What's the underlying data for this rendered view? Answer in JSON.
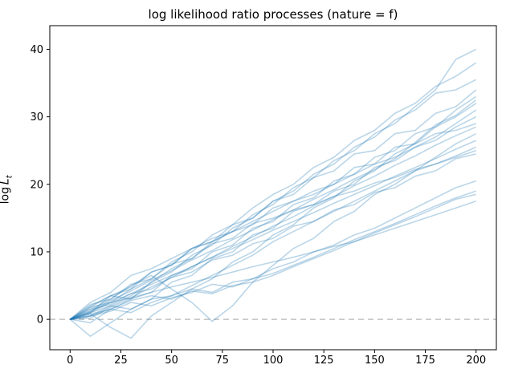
{
  "chart_data": {
    "type": "line",
    "title": "log likelihood ratio processes (nature = f)",
    "xlabel": "",
    "ylabel": {
      "prefix": "log",
      "var": "L",
      "sub": "t"
    },
    "xlim": [
      -10,
      210
    ],
    "ylim": [
      -4.5,
      43.5
    ],
    "xticks": [
      0,
      25,
      50,
      75,
      100,
      125,
      150,
      175,
      200
    ],
    "yticks": [
      0,
      10,
      20,
      30,
      40
    ],
    "grid": false,
    "legend": "none",
    "zero_line": {
      "y": 0,
      "color": "#b5b5b5",
      "dash": "7 5",
      "width": 1.3
    },
    "style": {
      "line_color": "#1f77b4",
      "line_alpha": 0.3,
      "line_width": 1.6,
      "spine_color": "#000000",
      "tick_color": "#000000",
      "tick_label_size": 13
    },
    "x": [
      0,
      10,
      20,
      30,
      40,
      50,
      60,
      70,
      80,
      90,
      100,
      110,
      120,
      130,
      140,
      150,
      160,
      170,
      180,
      190,
      200
    ],
    "series": [
      {
        "values": [
          0,
          2.0,
          3.5,
          3.0,
          5.5,
          7.5,
          9.0,
          11.5,
          13.0,
          15.5,
          17.0,
          19.5,
          21.0,
          23.5,
          25.0,
          27.5,
          29.0,
          31.5,
          34.0,
          38.5,
          40.0
        ]
      },
      {
        "values": [
          0,
          1.0,
          2.5,
          4.5,
          6.0,
          8.5,
          10.0,
          12.5,
          14.0,
          16.5,
          18.5,
          20.0,
          22.5,
          24.0,
          26.5,
          28.0,
          30.5,
          32.0,
          34.5,
          36.0,
          38.0
        ]
      },
      {
        "values": [
          0,
          0.5,
          2.0,
          3.5,
          5.5,
          7.0,
          9.5,
          11.0,
          13.5,
          15.0,
          17.5,
          19.0,
          21.5,
          23.0,
          25.5,
          27.0,
          29.5,
          31.0,
          33.5,
          34.0,
          35.5
        ]
      },
      {
        "values": [
          0,
          1.8,
          3.5,
          4.8,
          7.0,
          8.0,
          10.5,
          11.5,
          14.0,
          15.0,
          17.5,
          18.5,
          21.0,
          22.0,
          24.5,
          25.0,
          27.5,
          28.0,
          30.5,
          31.5,
          34.0
        ]
      },
      {
        "values": [
          0,
          -0.5,
          1.5,
          3.0,
          4.0,
          6.5,
          7.5,
          10.0,
          11.0,
          13.5,
          14.5,
          17.0,
          18.0,
          20.5,
          21.5,
          24.0,
          25.0,
          27.5,
          28.5,
          31.0,
          33.0
        ]
      },
      {
        "values": [
          0,
          1.2,
          2.8,
          4.2,
          5.8,
          7.2,
          8.8,
          10.2,
          11.8,
          13.2,
          14.8,
          16.2,
          17.8,
          19.2,
          20.8,
          22.2,
          23.8,
          26.2,
          28.8,
          30.2,
          32.5
        ]
      },
      {
        "values": [
          0,
          0.8,
          -1.2,
          -2.8,
          0.5,
          2.5,
          4.5,
          6.0,
          8.5,
          10.0,
          12.5,
          14.0,
          16.5,
          18.0,
          20.5,
          22.0,
          24.5,
          26.0,
          28.5,
          30.0,
          32.0
        ]
      },
      {
        "values": [
          0,
          2.5,
          4.0,
          6.5,
          7.5,
          9.0,
          10.5,
          12.0,
          13.0,
          14.5,
          16.0,
          17.5,
          18.5,
          20.0,
          21.5,
          23.0,
          24.0,
          25.5,
          27.0,
          29.0,
          31.0
        ]
      },
      {
        "values": [
          0,
          -2.5,
          -0.5,
          1.5,
          3.0,
          5.5,
          6.5,
          9.0,
          10.0,
          12.5,
          13.5,
          16.0,
          17.0,
          19.0,
          20.0,
          22.5,
          23.5,
          25.5,
          26.5,
          28.5,
          30.0
        ]
      },
      {
        "values": [
          0,
          1.0,
          3.5,
          4.5,
          7.0,
          8.0,
          10.5,
          11.5,
          13.0,
          14.0,
          16.5,
          17.5,
          19.0,
          20.0,
          22.5,
          23.0,
          25.5,
          26.0,
          27.5,
          28.0,
          29.0
        ]
      },
      {
        "values": [
          0,
          0.2,
          1.8,
          3.2,
          4.8,
          6.2,
          7.8,
          9.2,
          10.8,
          12.2,
          13.8,
          15.2,
          16.8,
          18.2,
          19.8,
          21.2,
          22.8,
          24.2,
          25.8,
          27.2,
          28.5
        ]
      },
      {
        "values": [
          0,
          1.5,
          3.0,
          5.0,
          6.5,
          4.5,
          2.5,
          -0.3,
          2.0,
          5.5,
          8.0,
          10.5,
          12.0,
          14.5,
          16.0,
          18.5,
          20.0,
          22.0,
          24.0,
          26.0,
          27.5
        ]
      },
      {
        "values": [
          0,
          1.2,
          2.5,
          3.8,
          5.2,
          6.5,
          7.8,
          9.2,
          10.5,
          11.8,
          13.2,
          14.5,
          15.8,
          17.2,
          18.5,
          19.8,
          21.2,
          22.5,
          23.8,
          25.2,
          26.5
        ]
      },
      {
        "values": [
          0,
          2.2,
          3.0,
          5.2,
          6.0,
          8.2,
          9.0,
          11.2,
          12.0,
          14.2,
          15.0,
          16.2,
          17.0,
          18.2,
          19.0,
          20.2,
          21.0,
          22.2,
          23.0,
          24.2,
          25.5
        ]
      },
      {
        "values": [
          0,
          0.5,
          1.5,
          1.0,
          2.5,
          3.5,
          5.0,
          6.5,
          8.0,
          9.5,
          11.5,
          13.0,
          14.5,
          16.0,
          17.5,
          19.0,
          20.5,
          22.0,
          23.0,
          24.0,
          25.0
        ]
      },
      {
        "values": [
          0,
          1.5,
          2.2,
          3.8,
          4.5,
          6.2,
          7.0,
          8.8,
          9.5,
          11.2,
          12.0,
          13.8,
          14.5,
          16.2,
          17.0,
          18.8,
          19.5,
          21.2,
          22.0,
          23.8,
          24.5
        ]
      },
      {
        "values": [
          0,
          1.0,
          2.0,
          1.5,
          3.0,
          3.5,
          4.5,
          4.0,
          5.5,
          6.0,
          7.5,
          8.5,
          10.0,
          11.0,
          12.5,
          13.5,
          15.0,
          16.5,
          18.0,
          19.5,
          20.5
        ]
      },
      {
        "values": [
          0,
          0.5,
          1.2,
          2.5,
          2.0,
          3.2,
          4.0,
          5.2,
          4.8,
          6.0,
          6.8,
          8.0,
          9.2,
          10.5,
          11.8,
          13.0,
          14.2,
          15.5,
          16.8,
          18.0,
          19.0
        ]
      },
      {
        "values": [
          0,
          0.8,
          1.5,
          2.8,
          3.5,
          3.0,
          4.2,
          3.8,
          5.0,
          5.5,
          6.5,
          7.8,
          9.0,
          10.2,
          11.5,
          12.8,
          14.0,
          15.2,
          16.5,
          17.8,
          18.5
        ]
      },
      {
        "values": [
          0,
          1.8,
          2.5,
          3.2,
          4.0,
          4.8,
          5.5,
          6.2,
          7.0,
          7.8,
          8.5,
          9.2,
          10.0,
          10.8,
          11.5,
          12.5,
          13.5,
          14.5,
          15.5,
          16.5,
          17.5
        ]
      }
    ]
  }
}
